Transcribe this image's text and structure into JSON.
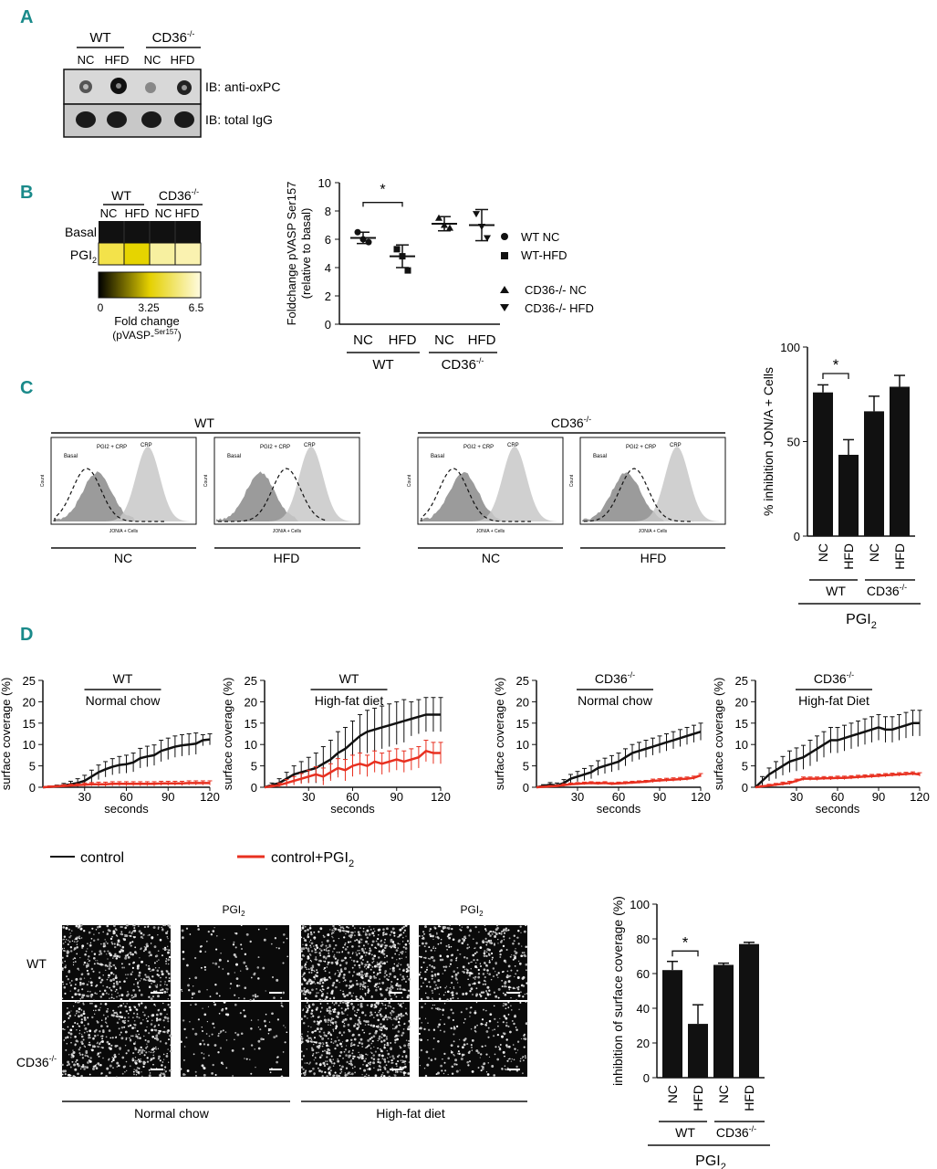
{
  "panels": {
    "a": "A",
    "b": "B",
    "c": "C",
    "d": "D"
  },
  "panelA": {
    "groups": [
      "WT",
      "CD36-/-"
    ],
    "lanes": [
      "NC",
      "HFD",
      "NC",
      "HFD"
    ],
    "blots": [
      "IB: anti-oxPC",
      "IB: total IgG"
    ]
  },
  "panelB_heatmap": {
    "groups": [
      "WT",
      "CD36-/-"
    ],
    "lanes": [
      "NC",
      "HFD",
      "NC",
      "HFD"
    ],
    "rows": [
      "Basal",
      "PGI2"
    ],
    "scale_ticks": [
      "0",
      "3.25",
      "6.5"
    ],
    "scale_label_1": "Fold change",
    "scale_label_2": "(pVASP-Ser157)",
    "colors": {
      "basal": "#111111",
      "pgi2_wt_nc": "#f3e24a",
      "pgi2_wt_hfd": "#e6d400",
      "pgi2_cd_nc": "#f7f0a0",
      "pgi2_cd_hfd": "#faf2b0"
    }
  },
  "panelC_labels": {
    "wt": "WT",
    "cd36": "CD36-/-",
    "nc": "NC",
    "hfd": "HFD",
    "basal": "Basal",
    "pgi2crp": "PGI2 + CRP",
    "crp": "CRP",
    "count": "Count",
    "xaxis": "JON/A + Cells"
  },
  "legend": {
    "wt_nc": "WT NC",
    "wt_hfd": "WT-HFD",
    "cd_nc": "CD36-/- NC",
    "cd_hfd": "CD36-/- HFD",
    "control": "control",
    "control_pgi2": "control+PGI2"
  },
  "micro_labels": {
    "pgi2": "PGI2",
    "wt": "WT",
    "cd36": "CD36-/-",
    "nc": "Normal chow",
    "hfd": "High-fat diet"
  },
  "chart_data": [
    {
      "type": "scatter",
      "id": "B",
      "ylabel": "Foldchange pVASP Ser157 (relative to basal)",
      "categories": [
        "NC",
        "HFD",
        "NC",
        "HFD"
      ],
      "groups": [
        "WT",
        "CD36-/-"
      ],
      "ylim": [
        0,
        10
      ],
      "yticks": [
        0,
        2,
        4,
        6,
        8,
        10
      ],
      "mean": [
        6.1,
        4.8,
        7.1,
        7.0
      ],
      "sd": [
        0.4,
        0.8,
        0.5,
        1.1
      ],
      "points": [
        [
          6.5,
          6.0,
          5.8
        ],
        [
          5.3,
          4.8,
          3.8
        ],
        [
          7.5,
          7.0,
          6.8
        ],
        [
          7.8,
          6.9,
          6.1
        ]
      ],
      "markers": [
        "circle",
        "square",
        "triangle-up",
        "triangle-down"
      ],
      "significance": "*"
    },
    {
      "type": "bar",
      "id": "C",
      "ylabel": "% inhibition JON/A + Cells",
      "categories": [
        "NC",
        "HFD",
        "NC",
        "HFD"
      ],
      "groups": [
        "WT",
        "CD36-/-"
      ],
      "xgroup": "PGI2",
      "ylim": [
        0,
        100
      ],
      "yticks": [
        0,
        50,
        100
      ],
      "values": [
        76,
        43,
        66,
        79
      ],
      "errors": [
        4,
        8,
        8,
        6
      ],
      "significance": "*"
    },
    {
      "type": "line",
      "id": "D1",
      "title": "WT",
      "subtitle": "Normal chow",
      "xlabel": "seconds",
      "ylabel": "surface coverage (%)",
      "x": [
        0,
        5,
        10,
        15,
        20,
        25,
        30,
        35,
        40,
        45,
        50,
        55,
        60,
        65,
        70,
        75,
        80,
        85,
        90,
        95,
        100,
        105,
        110,
        115,
        120
      ],
      "xticks": [
        30,
        60,
        90,
        120
      ],
      "ylim": [
        0,
        25
      ],
      "yticks": [
        0,
        5,
        10,
        15,
        20,
        25
      ],
      "series": [
        {
          "name": "control",
          "color": "#111111",
          "values": [
            0,
            0.1,
            0.2,
            0.4,
            0.7,
            1.0,
            1.5,
            2.5,
            3.5,
            4.2,
            4.8,
            5.2,
            5.4,
            5.8,
            6.8,
            7.2,
            7.5,
            8.5,
            9.0,
            9.5,
            9.8,
            10.0,
            10.2,
            11.0,
            11.2
          ],
          "err": [
            0,
            0.2,
            0.3,
            0.5,
            0.7,
            1.0,
            1.3,
            1.5,
            1.7,
            1.8,
            1.9,
            2.0,
            2.1,
            2.2,
            2.3,
            2.4,
            2.4,
            2.5,
            2.5,
            2.5,
            2.5,
            2.5,
            2.5,
            1.3,
            1.3
          ]
        },
        {
          "name": "control+PGI2",
          "color": "#e83020",
          "values": [
            0,
            0.1,
            0.2,
            0.3,
            0.4,
            0.5,
            0.6,
            0.7,
            0.7,
            0.7,
            0.8,
            0.8,
            0.8,
            0.8,
            0.8,
            0.8,
            0.8,
            0.9,
            0.9,
            0.9,
            0.9,
            1.0,
            1.0,
            1.0,
            1.0
          ],
          "err": [
            0,
            0.2,
            0.2,
            0.3,
            0.3,
            0.3,
            0.4,
            0.4,
            0.5,
            0.5,
            0.5,
            0.5,
            0.5,
            0.5,
            0.5,
            0.5,
            0.5,
            0.5,
            0.5,
            0.5,
            0.5,
            0.5,
            0.5,
            0.5,
            0.5
          ]
        }
      ]
    },
    {
      "type": "line",
      "id": "D2",
      "title": "WT",
      "subtitle": "High-fat diet",
      "xlabel": "seconds",
      "ylabel": "surface coverage (%)",
      "x": [
        0,
        5,
        10,
        15,
        20,
        25,
        30,
        35,
        40,
        45,
        50,
        55,
        60,
        65,
        70,
        75,
        80,
        85,
        90,
        95,
        100,
        105,
        110,
        115,
        120
      ],
      "xticks": [
        30,
        60,
        90,
        120
      ],
      "ylim": [
        0,
        25
      ],
      "yticks": [
        0,
        5,
        10,
        15,
        20,
        25
      ],
      "series": [
        {
          "name": "control",
          "color": "#111111",
          "values": [
            0,
            0.5,
            1.0,
            2.0,
            3.0,
            3.5,
            4.0,
            4.5,
            5.5,
            6.5,
            8.0,
            9.0,
            10.5,
            12.0,
            13.0,
            13.5,
            14.0,
            14.5,
            15.0,
            15.5,
            16.0,
            16.5,
            17.0,
            17.0,
            17.0
          ],
          "err": [
            0,
            0.5,
            1,
            1.5,
            2,
            2.5,
            3,
            3.5,
            4,
            4.5,
            5,
            5,
            5,
            5,
            5,
            5,
            5,
            5,
            5,
            5,
            4,
            4,
            4,
            4,
            4
          ]
        },
        {
          "name": "control+PGI2",
          "color": "#e83020",
          "values": [
            0,
            0.2,
            0.5,
            1.0,
            1.5,
            2.0,
            2.5,
            3.0,
            2.5,
            3.5,
            4.5,
            4.0,
            5.0,
            5.5,
            5.0,
            6.0,
            5.5,
            6.0,
            6.5,
            6.0,
            6.5,
            7.0,
            8.5,
            8.0,
            8.0
          ],
          "err": [
            0,
            0.3,
            0.5,
            0.8,
            1,
            1.2,
            1.5,
            1.8,
            2,
            2,
            2.2,
            2.5,
            2.5,
            2.5,
            2.5,
            2.5,
            2.5,
            2.5,
            2.5,
            2.5,
            2.5,
            2.5,
            2.5,
            2.5,
            2.5
          ]
        }
      ]
    },
    {
      "type": "line",
      "id": "D3",
      "title": "CD36-/-",
      "subtitle": "Normal chow",
      "xlabel": "seconds",
      "ylabel": "surface coverage (%)",
      "x": [
        0,
        5,
        10,
        15,
        20,
        25,
        30,
        35,
        40,
        45,
        50,
        55,
        60,
        65,
        70,
        75,
        80,
        85,
        90,
        95,
        100,
        105,
        110,
        115,
        120
      ],
      "xticks": [
        30,
        60,
        90,
        120
      ],
      "ylim": [
        0,
        25
      ],
      "yticks": [
        0,
        5,
        10,
        15,
        20,
        25
      ],
      "series": [
        {
          "name": "control",
          "color": "#111111",
          "values": [
            0,
            0.3,
            0.6,
            0.4,
            1.0,
            2.0,
            2.5,
            3.0,
            3.5,
            4.5,
            5.0,
            5.5,
            6.0,
            7.0,
            8.0,
            8.5,
            9.0,
            9.5,
            10.0,
            10.5,
            11.0,
            11.5,
            12.0,
            12.5,
            13.0
          ],
          "err": [
            0,
            0.3,
            0.5,
            0.6,
            0.8,
            1,
            1.2,
            1.4,
            1.5,
            1.7,
            1.8,
            1.9,
            2,
            2,
            2,
            2,
            2,
            2,
            2,
            2,
            2,
            2,
            2,
            2,
            2
          ]
        },
        {
          "name": "control+PGI2",
          "color": "#e83020",
          "values": [
            0,
            0.1,
            0.2,
            0.3,
            0.5,
            0.7,
            0.8,
            0.9,
            1.0,
            0.9,
            1.0,
            0.8,
            0.9,
            1.0,
            1.1,
            1.2,
            1.3,
            1.5,
            1.6,
            1.7,
            1.8,
            1.9,
            2.0,
            2.2,
            2.8
          ],
          "err": [
            0,
            0.1,
            0.2,
            0.2,
            0.3,
            0.3,
            0.3,
            0.3,
            0.3,
            0.3,
            0.3,
            0.3,
            0.3,
            0.3,
            0.3,
            0.3,
            0.3,
            0.4,
            0.4,
            0.4,
            0.4,
            0.4,
            0.4,
            0.4,
            0.4
          ]
        }
      ]
    },
    {
      "type": "line",
      "id": "D4",
      "title": "CD36-/-",
      "subtitle": "High-fat Diet",
      "xlabel": "seconds",
      "ylabel": "surface coverage (%)",
      "x": [
        0,
        5,
        10,
        15,
        20,
        25,
        30,
        35,
        40,
        45,
        50,
        55,
        60,
        65,
        70,
        75,
        80,
        85,
        90,
        95,
        100,
        105,
        110,
        115,
        120
      ],
      "xticks": [
        30,
        60,
        90,
        120
      ],
      "ylim": [
        0,
        25
      ],
      "yticks": [
        0,
        5,
        10,
        15,
        20,
        25
      ],
      "series": [
        {
          "name": "control",
          "color": "#111111",
          "values": [
            0,
            1.5,
            3.0,
            4.0,
            5.0,
            6.0,
            6.5,
            7.0,
            8.0,
            9.0,
            10.0,
            11.0,
            11.0,
            11.5,
            12.0,
            12.5,
            13.0,
            13.5,
            14.0,
            13.5,
            13.5,
            14.0,
            14.5,
            15.0,
            15.0
          ],
          "err": [
            0,
            1,
            1.5,
            2,
            2.2,
            2.5,
            2.7,
            2.8,
            3,
            3,
            3,
            3,
            3,
            3,
            3,
            3,
            3,
            3,
            3,
            3,
            3,
            3,
            3,
            3,
            3
          ]
        },
        {
          "name": "control+PGI2",
          "color": "#e83020",
          "values": [
            0,
            0.2,
            0.4,
            0.6,
            0.8,
            1.0,
            1.5,
            2.0,
            2.0,
            2.0,
            2.1,
            2.1,
            2.2,
            2.2,
            2.3,
            2.4,
            2.5,
            2.6,
            2.7,
            2.8,
            2.9,
            3.0,
            3.1,
            3.2,
            3.0
          ],
          "err": [
            0,
            0.2,
            0.3,
            0.3,
            0.4,
            0.4,
            0.4,
            0.4,
            0.4,
            0.4,
            0.4,
            0.4,
            0.4,
            0.4,
            0.4,
            0.4,
            0.4,
            0.4,
            0.4,
            0.4,
            0.4,
            0.4,
            0.4,
            0.4,
            0.4
          ]
        }
      ]
    },
    {
      "type": "bar",
      "id": "D5",
      "ylabel": "inhibition of surface coverage (%)",
      "categories": [
        "NC",
        "HFD",
        "NC",
        "HFD"
      ],
      "groups": [
        "WT",
        "CD36-/-"
      ],
      "xgroup": "PGI2",
      "ylim": [
        0,
        100
      ],
      "yticks": [
        0,
        20,
        40,
        60,
        80,
        100
      ],
      "values": [
        62,
        31,
        65,
        77
      ],
      "errors": [
        5,
        11,
        1,
        1
      ],
      "significance": "*"
    }
  ]
}
